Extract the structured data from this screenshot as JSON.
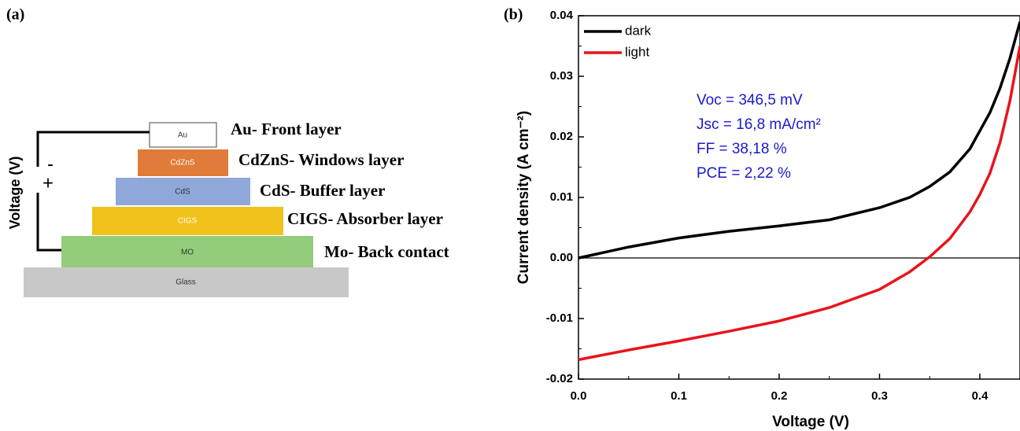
{
  "panel_a": {
    "label": "(a)",
    "axis_label": "Voltage (V)",
    "minus": "-",
    "plus": "+",
    "layers": [
      {
        "name": "Au",
        "description": "Au- Front layer"
      },
      {
        "name": "CdZnS",
        "description": "CdZnS- Windows layer"
      },
      {
        "name": "CdS",
        "description": "CdS- Buffer layer"
      },
      {
        "name": "CIGS",
        "description": "CIGS- Absorber layer"
      },
      {
        "name": "MO",
        "description": "Mo- Back contact"
      },
      {
        "name": "Glass"
      }
    ]
  },
  "chart_data": {
    "type": "line",
    "panel_label": "(b)",
    "x_label": "Voltage (V)",
    "y_label": "Current density (A cm⁻²)",
    "x": [
      0,
      0.05,
      0.1,
      0.15,
      0.2,
      0.25,
      0.3,
      0.33,
      0.35,
      0.37,
      0.39,
      0.4,
      0.41,
      0.42,
      0.43,
      0.44
    ],
    "series": [
      {
        "name": "dark",
        "color": "#000000",
        "values": [
          0,
          0.0018,
          0.0033,
          0.0044,
          0.0053,
          0.0063,
          0.0083,
          0.01,
          0.0118,
          0.0142,
          0.018,
          0.021,
          0.024,
          0.028,
          0.033,
          0.039
        ]
      },
      {
        "name": "light",
        "color": "#e8141b",
        "values": [
          -0.0168,
          -0.0152,
          -0.0137,
          -0.0121,
          -0.0104,
          -0.0082,
          -0.0052,
          -0.0023,
          0.0002,
          0.0032,
          0.0076,
          0.0105,
          0.014,
          0.019,
          0.026,
          0.035
        ]
      }
    ],
    "annotations": [
      "Voc = 346,5 mV",
      "Jsc = 16,8 mA/cm²",
      "FF = 38,18 %",
      "PCE = 2,22 %"
    ],
    "annotation_color": "#1a1acc",
    "xlim": [
      0,
      0.44
    ],
    "ylim": [
      -0.02,
      0.04
    ],
    "xticks": [
      {
        "value": 0,
        "label": "0.0"
      },
      0.1,
      0.2,
      0.3,
      0.4
    ],
    "yticks": [
      -0.02,
      -0.01,
      {
        "value": 0,
        "label": "0.00"
      },
      0.01,
      0.02,
      0.03,
      0.04
    ]
  }
}
